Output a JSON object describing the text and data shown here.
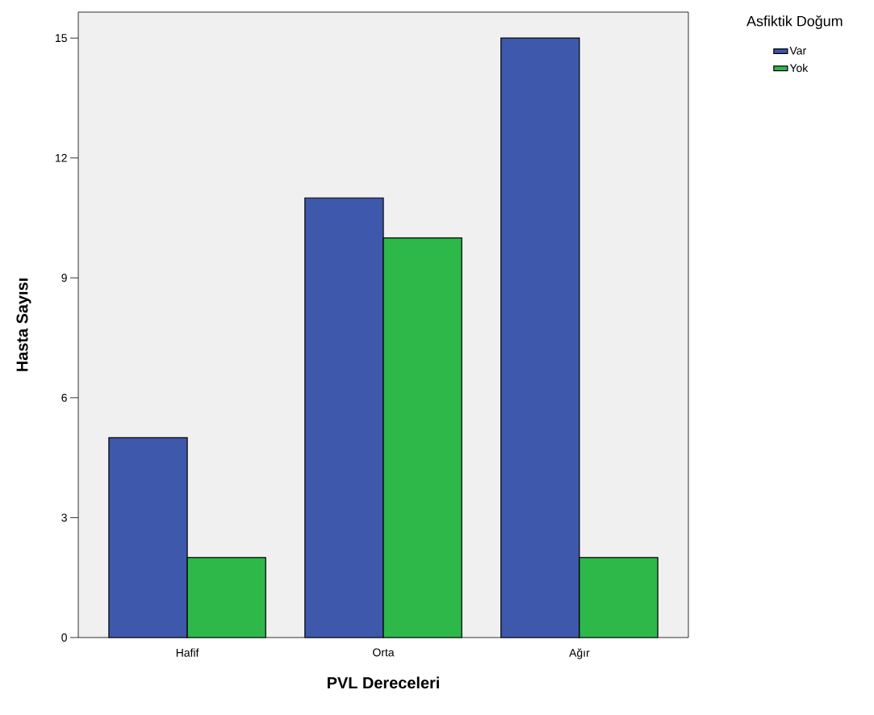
{
  "chart_data": {
    "type": "bar",
    "xlabel": "PVL Dereceleri",
    "ylabel": "Hasta Sayısı",
    "legend_title": "Asfiktik Doğum",
    "categories": [
      "Hafif",
      "Orta",
      "Ağır"
    ],
    "series": [
      {
        "name": "Var",
        "color": "#3e58ac",
        "values": [
          5,
          11,
          15
        ]
      },
      {
        "name": "Yok",
        "color": "#2eb84a",
        "values": [
          2,
          10,
          2
        ]
      }
    ],
    "ylim": [
      0,
      15.65
    ],
    "yticks": [
      0,
      3,
      6,
      9,
      12,
      15
    ],
    "grid": false,
    "legend": "top right"
  }
}
